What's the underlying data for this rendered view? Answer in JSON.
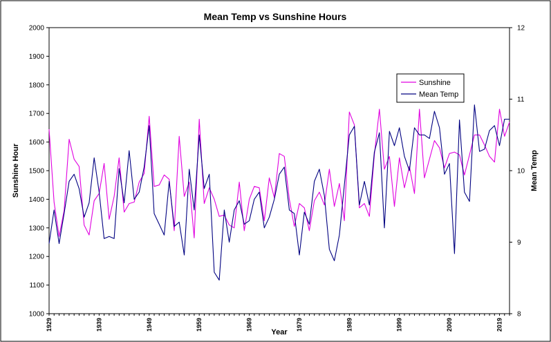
{
  "chart_data": {
    "type": "line",
    "title": "Mean Temp vs Sunshine Hours",
    "xlabel": "Year",
    "ylabel": "Sunshine Hour",
    "y2label": "Mean Temp",
    "xlim": [
      1929,
      2021
    ],
    "ylim": [
      1000,
      2000
    ],
    "y2lim": [
      8,
      12
    ],
    "y_ticks": [
      "1000",
      "1100",
      "1200",
      "1300",
      "1400",
      "1500",
      "1600",
      "1700",
      "1800",
      "1900",
      "2000"
    ],
    "y2_ticks": [
      "8",
      "9",
      "10",
      "11",
      "12"
    ],
    "x_ticks": [
      "1929",
      "1939",
      "1949",
      "1959",
      "1969",
      "1979",
      "1989",
      "1999",
      "2009",
      "2019"
    ],
    "grid": false,
    "legend_position": "top-right",
    "x": [
      1929,
      1930,
      1931,
      1932,
      1933,
      1934,
      1935,
      1936,
      1937,
      1938,
      1939,
      1940,
      1941,
      1942,
      1943,
      1944,
      1945,
      1946,
      1947,
      1948,
      1949,
      1950,
      1951,
      1952,
      1953,
      1954,
      1955,
      1956,
      1957,
      1958,
      1959,
      1960,
      1961,
      1962,
      1963,
      1964,
      1965,
      1966,
      1967,
      1968,
      1969,
      1970,
      1971,
      1972,
      1973,
      1974,
      1975,
      1976,
      1977,
      1978,
      1979,
      1980,
      1981,
      1982,
      1983,
      1984,
      1985,
      1986,
      1987,
      1988,
      1989,
      1990,
      1991,
      1992,
      1993,
      1994,
      1995,
      1996,
      1997,
      1998,
      1999,
      2000,
      2001,
      2002,
      2003,
      2004,
      2005,
      2006,
      2007,
      2008,
      2009,
      2010,
      2011,
      2012,
      2013,
      2014,
      2015,
      2016,
      2017,
      2018,
      2019,
      2020,
      2021
    ],
    "series": [
      {
        "name": "Sunshine",
        "color": "#e000e0",
        "axis": "left",
        "values": [
          1645,
          1390,
          1270,
          1360,
          1610,
          1540,
          1515,
          1310,
          1275,
          1395,
          1420,
          1525,
          1330,
          1410,
          1545,
          1355,
          1385,
          1390,
          1460,
          1490,
          1690,
          1445,
          1450,
          1485,
          1470,
          1290,
          1620,
          1410,
          1460,
          1265,
          1680,
          1385,
          1440,
          1400,
          1340,
          1345,
          1310,
          1300,
          1460,
          1290,
          1400,
          1445,
          1440,
          1325,
          1475,
          1405,
          1560,
          1550,
          1400,
          1305,
          1385,
          1370,
          1290,
          1395,
          1425,
          1380,
          1505,
          1375,
          1455,
          1325,
          1705,
          1660,
          1370,
          1385,
          1340,
          1555,
          1715,
          1505,
          1550,
          1375,
          1545,
          1440,
          1515,
          1420,
          1715,
          1475,
          1540,
          1605,
          1580,
          1510,
          1560,
          1565,
          1555,
          1485,
          1555,
          1625,
          1625,
          1590,
          1550,
          1530,
          1715,
          1620,
          1670
        ]
      },
      {
        "name": "Mean Temp",
        "color": "#000080",
        "axis": "right",
        "values": [
          8.98,
          9.45,
          8.98,
          9.4,
          9.85,
          9.95,
          9.75,
          9.35,
          9.55,
          10.18,
          9.7,
          9.05,
          9.08,
          9.05,
          10.03,
          9.55,
          10.28,
          9.6,
          9.7,
          10.05,
          10.63,
          9.4,
          9.25,
          9.1,
          9.85,
          9.22,
          9.28,
          8.82,
          10.02,
          9.45,
          10.5,
          9.75,
          9.95,
          8.58,
          8.47,
          9.45,
          9.0,
          9.45,
          9.58,
          9.25,
          9.3,
          9.6,
          9.7,
          9.2,
          9.35,
          9.6,
          9.95,
          10.05,
          9.45,
          9.4,
          8.82,
          9.42,
          9.25,
          9.85,
          10.02,
          9.65,
          8.9,
          8.74,
          9.1,
          9.8,
          10.5,
          10.62,
          9.52,
          9.85,
          9.52,
          10.26,
          10.53,
          9.2,
          10.55,
          10.35,
          10.6,
          10.2,
          10.0,
          10.6,
          10.5,
          10.5,
          10.45,
          10.83,
          10.6,
          9.95,
          10.1,
          8.84,
          10.71,
          9.7,
          9.57,
          10.92,
          10.27,
          10.3,
          10.56,
          10.63,
          10.35,
          10.72,
          10.72
        ]
      }
    ]
  }
}
